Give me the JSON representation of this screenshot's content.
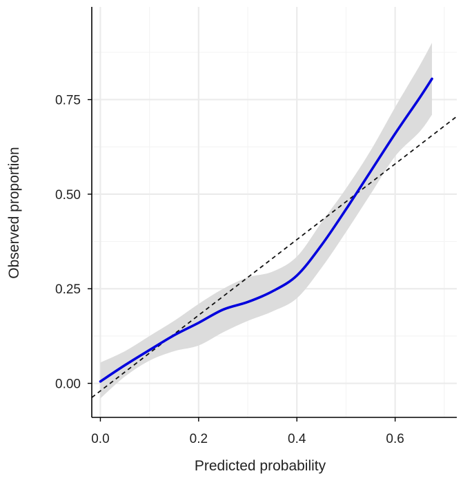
{
  "chart_data": {
    "type": "line",
    "title": "",
    "xlabel": "Predicted probability",
    "ylabel": "Observed proportion",
    "xlim": [
      -0.0175,
      0.7255
    ],
    "ylim": [
      -0.09,
      0.995
    ],
    "x_ticks": [
      0.0,
      0.2,
      0.4,
      0.6
    ],
    "x_tick_labels": [
      "0.0",
      "0.2",
      "0.4",
      "0.6"
    ],
    "x_minor_ticks": [
      0.1,
      0.3,
      0.5,
      0.7
    ],
    "y_ticks": [
      0.0,
      0.25,
      0.5,
      0.75
    ],
    "y_tick_labels": [
      "0.00",
      "0.25",
      "0.50",
      "0.75"
    ],
    "y_minor_ticks": [
      0.125,
      0.375,
      0.625,
      0.875
    ],
    "grid": true,
    "colors": {
      "curve": "#0000dd",
      "band": "#dcdcdc",
      "reference": "#111111",
      "grid_major": "#ebebeb",
      "grid_minor": "#f4f4f4",
      "axis": "#000000"
    },
    "series": [
      {
        "type": "line",
        "x": [
          0.0,
          0.05,
          0.1,
          0.15,
          0.2,
          0.25,
          0.3,
          0.35,
          0.4,
          0.45,
          0.5,
          0.55,
          0.6,
          0.65,
          0.675
        ],
        "y": [
          0.005,
          0.048,
          0.088,
          0.127,
          0.16,
          0.195,
          0.215,
          0.243,
          0.285,
          0.365,
          0.46,
          0.56,
          0.66,
          0.755,
          0.805
        ],
        "lower": [
          -0.04,
          0.018,
          0.06,
          0.085,
          0.1,
          0.135,
          0.165,
          0.19,
          0.225,
          0.305,
          0.4,
          0.5,
          0.6,
          0.665,
          0.71
        ],
        "upper": [
          0.055,
          0.085,
          0.125,
          0.165,
          0.21,
          0.25,
          0.28,
          0.295,
          0.335,
          0.425,
          0.515,
          0.615,
          0.73,
          0.84,
          0.9
        ]
      },
      {
        "type": "reference-line",
        "style": "dashed",
        "x": [
          -0.0175,
          0.7255
        ],
        "y": [
          -0.0375,
          0.7055
        ]
      }
    ]
  }
}
